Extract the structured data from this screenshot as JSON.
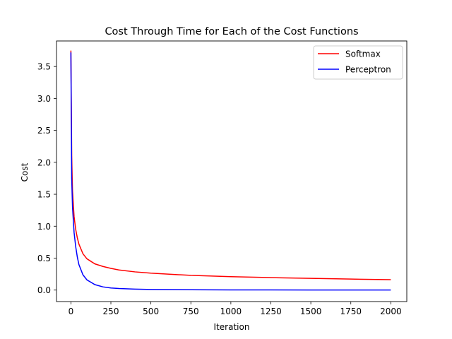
{
  "chart_data": {
    "type": "line",
    "title": "Cost Through Time for Each of the Cost Functions",
    "xlabel": "Iteration",
    "ylabel": "Cost",
    "xlim": [
      -90,
      2100
    ],
    "ylim": [
      -0.18,
      3.9
    ],
    "xticks": [
      0,
      250,
      500,
      750,
      1000,
      1250,
      1500,
      1750,
      2000
    ],
    "xtick_labels": [
      "0",
      "250",
      "500",
      "750",
      "1000",
      "1250",
      "1500",
      "1750",
      "2000"
    ],
    "yticks": [
      0.0,
      0.5,
      1.0,
      1.5,
      2.0,
      2.5,
      3.0,
      3.5
    ],
    "ytick_labels": [
      "0.0",
      "0.5",
      "1.0",
      "1.5",
      "2.0",
      "2.5",
      "3.0",
      "3.5"
    ],
    "grid": false,
    "legend_position": "top-right",
    "series": [
      {
        "name": "Softmax",
        "color": "#ff0000",
        "x": [
          0,
          5,
          10,
          20,
          30,
          40,
          50,
          75,
          100,
          150,
          200,
          250,
          300,
          400,
          500,
          750,
          1000,
          1250,
          1500,
          1750,
          2000
        ],
        "y": [
          3.75,
          2.1,
          1.55,
          1.15,
          0.95,
          0.82,
          0.72,
          0.57,
          0.49,
          0.41,
          0.37,
          0.34,
          0.315,
          0.285,
          0.265,
          0.23,
          0.21,
          0.195,
          0.183,
          0.172,
          0.163
        ]
      },
      {
        "name": "Perceptron",
        "color": "#0000ff",
        "x": [
          0,
          5,
          10,
          20,
          30,
          40,
          50,
          75,
          100,
          150,
          200,
          250,
          300,
          400,
          500,
          750,
          1000,
          1250,
          1500,
          1750,
          2000
        ],
        "y": [
          3.72,
          1.75,
          1.3,
          0.9,
          0.68,
          0.52,
          0.4,
          0.24,
          0.16,
          0.085,
          0.05,
          0.033,
          0.024,
          0.015,
          0.01,
          0.005,
          0.003,
          0.002,
          0.0015,
          0.001,
          0.001
        ]
      }
    ]
  }
}
